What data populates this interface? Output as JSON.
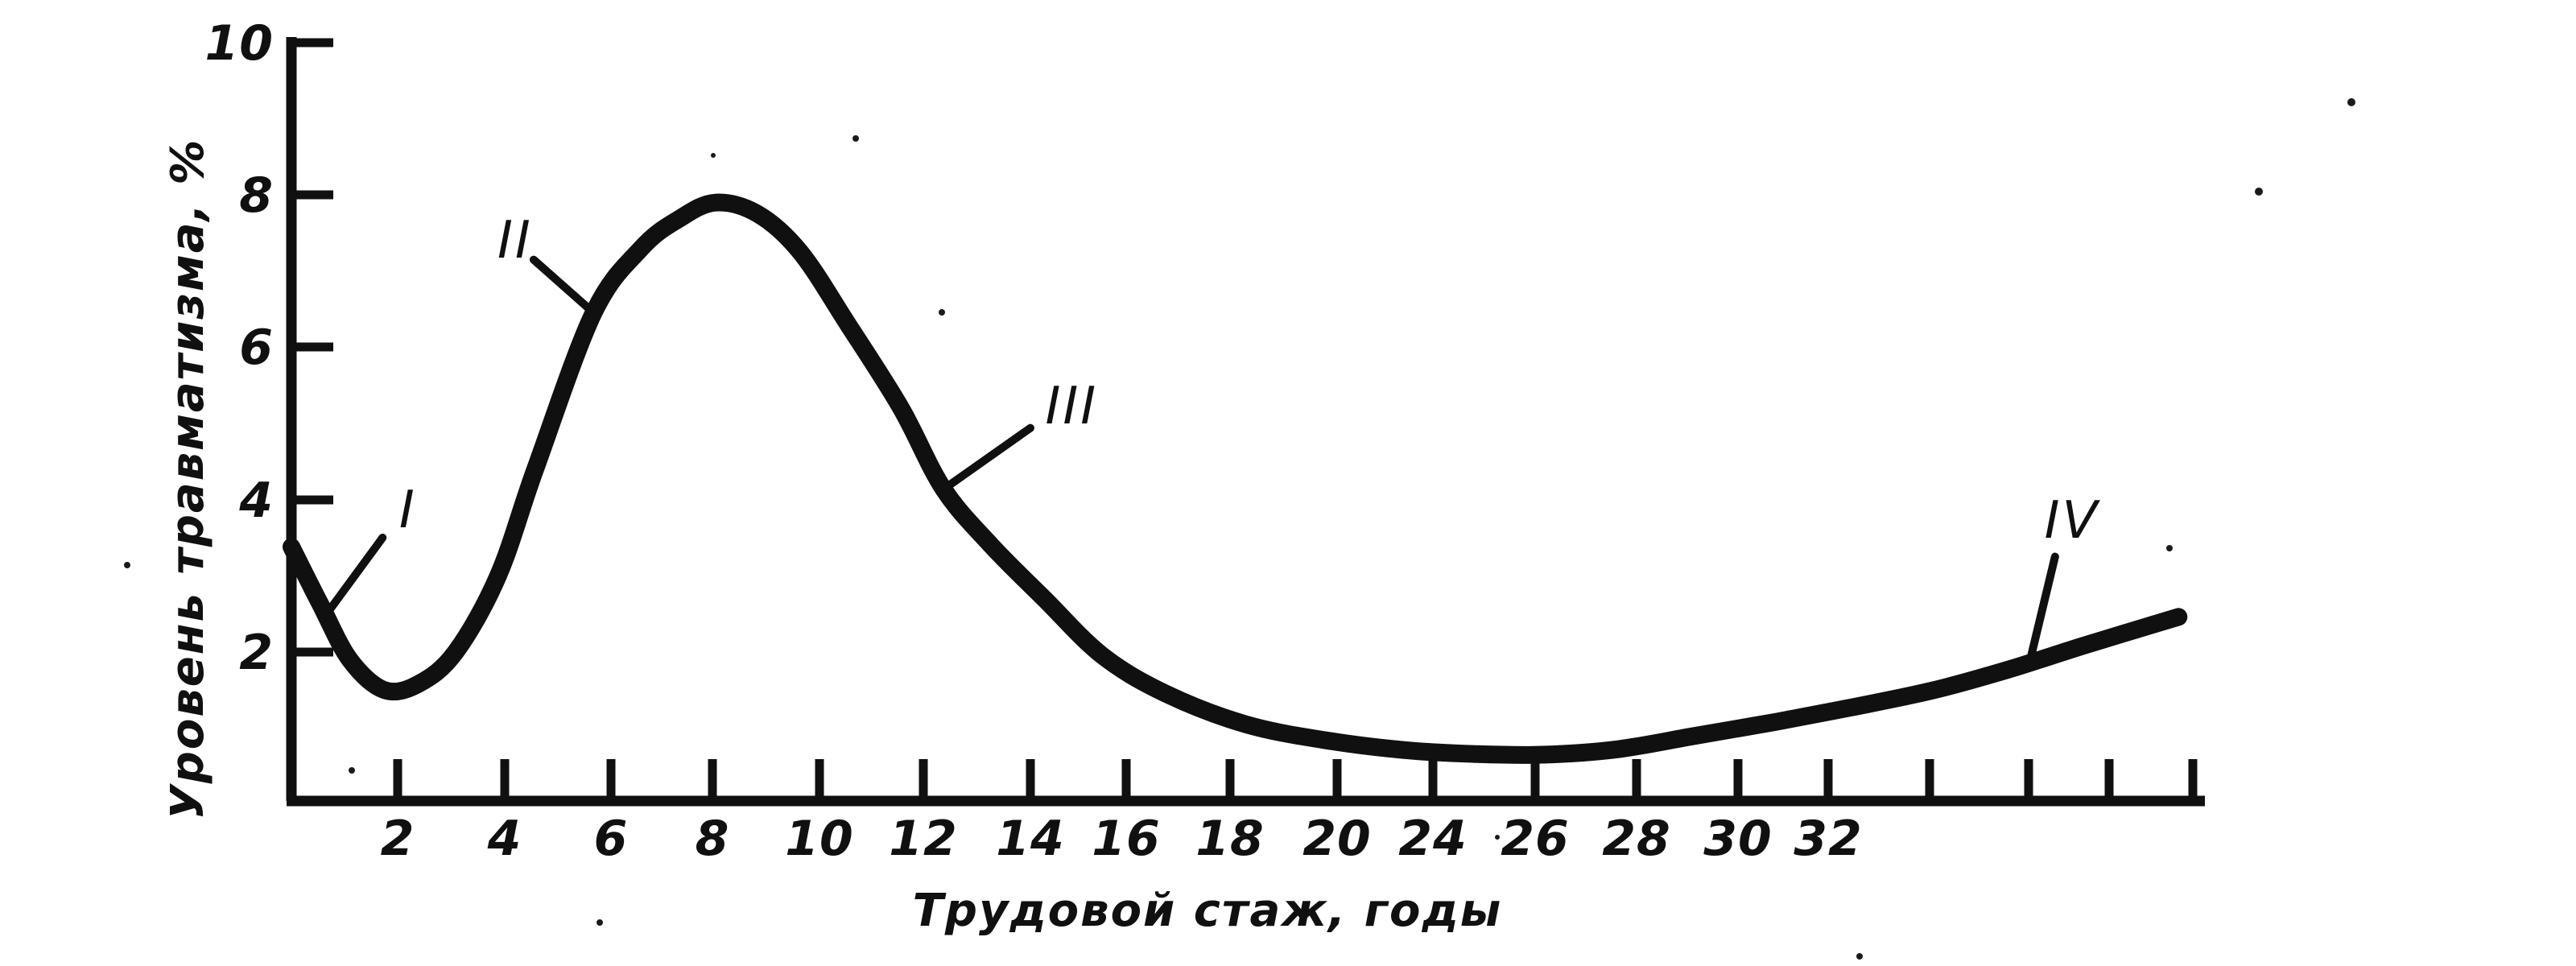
{
  "figure": {
    "background": "#ffffff",
    "ink": "#101010"
  },
  "chart_data": {
    "type": "line",
    "title": "",
    "xlabel": "Трудовой стаж, годы",
    "ylabel": "Уровень травматизма, %",
    "xlim": [
      0,
      36
    ],
    "ylim": [
      0,
      10
    ],
    "grid": false,
    "legend": "none",
    "x_tick_labels": [
      "2",
      "4",
      "6",
      "8",
      "10",
      "12",
      "14",
      "16",
      "18",
      "20",
      "24",
      "26",
      "28",
      "30",
      "32"
    ],
    "unlabeled_x_tick_count": 4,
    "y_tick_labels": [
      "10",
      "8",
      "6",
      "4",
      "2"
    ],
    "y_tick_values": [
      10,
      8,
      6,
      4,
      2
    ],
    "series": [
      {
        "name": "injury-rate-curve",
        "points": [
          [
            0,
            3.38
          ],
          [
            0.55,
            2.62
          ],
          [
            1.1,
            1.9
          ],
          [
            1.75,
            1.5
          ],
          [
            2.4,
            1.58
          ],
          [
            3.1,
            2.0
          ],
          [
            3.9,
            3.0
          ],
          [
            4.6,
            4.4
          ],
          [
            5.7,
            6.45
          ],
          [
            6.6,
            7.3
          ],
          [
            7.3,
            7.68
          ],
          [
            8,
            7.9
          ],
          [
            8.8,
            7.75
          ],
          [
            9.6,
            7.25
          ],
          [
            10.5,
            6.3
          ],
          [
            11.5,
            5.2
          ],
          [
            12.3,
            4.14
          ],
          [
            13.2,
            3.4
          ],
          [
            14.2,
            2.7
          ],
          [
            15.3,
            1.95
          ],
          [
            16.5,
            1.45
          ],
          [
            18,
            1.05
          ],
          [
            19.5,
            0.84
          ],
          [
            21,
            0.71
          ],
          [
            22.3,
            0.66
          ],
          [
            23.6,
            0.65
          ],
          [
            25,
            0.72
          ],
          [
            26.5,
            0.9
          ],
          [
            28,
            1.08
          ],
          [
            29.5,
            1.28
          ],
          [
            31,
            1.5
          ],
          [
            32.4,
            1.77
          ],
          [
            33.8,
            2.08
          ],
          [
            35.6,
            2.46
          ]
        ]
      }
    ],
    "annotations": [
      {
        "label": "I",
        "label_at": [
          2.2,
          3.87
        ],
        "line_from": [
          1.72,
          3.5
        ],
        "line_to": [
          0.73,
          2.56
        ]
      },
      {
        "label": "II",
        "label_at": [
          4.22,
          7.41
        ],
        "line_from": [
          4.57,
          7.15
        ],
        "line_to": [
          5.69,
          6.46
        ]
      },
      {
        "label": "III",
        "label_at": [
          14.72,
          5.23
        ],
        "line_from": [
          13.94,
          4.94
        ],
        "line_to": [
          12.31,
          4.14
        ]
      },
      {
        "label": "IV",
        "label_at": [
          33.59,
          3.73
        ],
        "line_from": [
          33.27,
          3.25
        ],
        "line_to": [
          32.8,
          1.89
        ]
      }
    ]
  }
}
